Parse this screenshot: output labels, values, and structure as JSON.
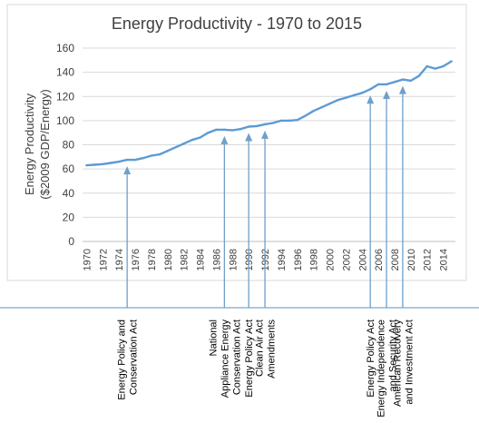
{
  "chart_data": {
    "type": "line",
    "title": "Energy Productivity - 1970 to 2015",
    "ylabel_line1": "Energy Productivity",
    "ylabel_line2": "($2009 GDP/Energy)",
    "ylim": [
      0,
      160
    ],
    "yticks": [
      0,
      20,
      40,
      60,
      80,
      100,
      120,
      140,
      160
    ],
    "x_tick_labels": [
      "1970",
      "1972",
      "1974",
      "1976",
      "1978",
      "1980",
      "1982",
      "1984",
      "1986",
      "1988",
      "1990",
      "1992",
      "1994",
      "1996",
      "1998",
      "2000",
      "2002",
      "2004",
      "2006",
      "2008",
      "2010",
      "2012",
      "2014"
    ],
    "grid": true,
    "series": [
      {
        "x": [
          1970,
          1971,
          1972,
          1973,
          1974,
          1975,
          1976,
          1977,
          1978,
          1979,
          1980,
          1981,
          1982,
          1983,
          1984,
          1985,
          1986,
          1987,
          1988,
          1989,
          1990,
          1991,
          1992,
          1993,
          1994,
          1995,
          1996,
          1997,
          1998,
          1999,
          2000,
          2001,
          2002,
          2003,
          2004,
          2005,
          2006,
          2007,
          2008,
          2009,
          2010,
          2011,
          2012,
          2013,
          2014,
          2015
        ],
        "values": [
          63,
          63.5,
          64,
          65,
          66,
          67.5,
          67.5,
          69,
          71,
          72,
          75,
          78,
          81,
          84,
          86,
          90,
          92.5,
          92.5,
          92,
          93,
          95,
          95.5,
          97,
          98,
          100,
          100,
          100.5,
          104,
          108,
          111,
          114,
          117,
          119,
          121,
          123,
          126,
          130,
          130,
          132,
          134,
          133,
          137,
          145,
          143,
          145,
          149
        ]
      }
    ],
    "colors": {
      "line": "#5b9bd5",
      "arrow": "#6fa0c8",
      "grid": "#d9d9d9",
      "axis": "#bfbfbf",
      "text": "#404040"
    },
    "annotations": [
      {
        "year": 1975,
        "label": [
          "Energy Policy and",
          "Conservation Act"
        ]
      },
      {
        "year": 1987,
        "label": [
          "National",
          "Appliance Energy",
          "Conservation Act"
        ]
      },
      {
        "year": 1990,
        "label": [
          "Energy Policy Act"
        ]
      },
      {
        "year": 1992,
        "label": [
          "Clean Air Act",
          "Amendments"
        ]
      },
      {
        "year": 2005,
        "label": [
          "Energy Policy Act"
        ]
      },
      {
        "year": 2007,
        "label": [
          "Energy Independence",
          "and Security Act"
        ]
      },
      {
        "year": 2009,
        "label": [
          "American Recovery",
          "and Investment Act"
        ]
      }
    ]
  }
}
